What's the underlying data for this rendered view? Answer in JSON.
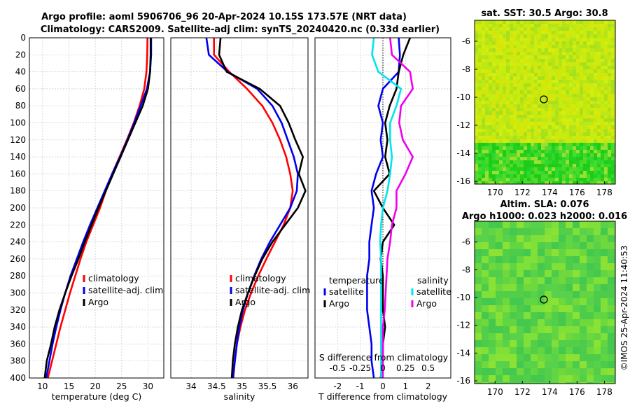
{
  "header": {
    "title_line1": "Argo profile: aoml 5906706_96 20-Apr-2024 10.15S 173.57E (NRT data)",
    "title_line2": "Climatology: CARS2009. Satellite-adj clim: synTS_20240420.nc (0.33d earlier)"
  },
  "stamp": "©IMOS 25-Apr-2024 11:40:53",
  "colors": {
    "climatology": "#ff0000",
    "satellite": "#0000ee",
    "argo": "#000000",
    "sal_satellite": "#00e5ee",
    "sal_argo": "#ee00ee",
    "sst_map": "#c8e600",
    "sla_map": "#60d040"
  },
  "chart_data": [
    {
      "type": "line",
      "id": "temperature",
      "xlabel": "temperature (deg C)",
      "xlim": [
        7.5,
        33
      ],
      "xticks": [
        10,
        15,
        20,
        25,
        30
      ],
      "ylim": [
        400,
        0
      ],
      "yticks": [
        0,
        20,
        40,
        60,
        80,
        100,
        120,
        140,
        160,
        180,
        200,
        220,
        240,
        260,
        280,
        300,
        320,
        340,
        360,
        380,
        400
      ],
      "legend": [
        "climatology",
        "satellite-adj. clim",
        "Argo"
      ],
      "series": [
        {
          "name": "climatology",
          "color": "#ff0000",
          "depth": [
            0,
            20,
            40,
            60,
            80,
            100,
            120,
            140,
            160,
            180,
            200,
            220,
            240,
            260,
            280,
            300,
            320,
            340,
            360,
            380,
            400
          ],
          "values": [
            29.9,
            29.85,
            29.7,
            29.3,
            28.4,
            27.3,
            26.0,
            24.6,
            23.2,
            22.0,
            20.9,
            19.6,
            18.3,
            17.2,
            16.2,
            15.2,
            14.3,
            13.4,
            12.6,
            11.8,
            11.0
          ]
        },
        {
          "name": "satellite-adj. clim",
          "color": "#0000ee",
          "depth": [
            0,
            20,
            40,
            60,
            80,
            100,
            120,
            140,
            160,
            180,
            200,
            220,
            240,
            260,
            280,
            300,
            320,
            340,
            360,
            380,
            400
          ],
          "values": [
            30.6,
            30.6,
            30.4,
            29.8,
            28.6,
            27.4,
            26.1,
            24.7,
            23.2,
            21.8,
            20.4,
            19.0,
            17.7,
            16.5,
            15.3,
            14.3,
            13.4,
            12.6,
            11.9,
            11.3,
            10.7
          ]
        },
        {
          "name": "Argo",
          "color": "#000000",
          "depth": [
            0,
            20,
            40,
            60,
            80,
            100,
            120,
            140,
            160,
            180,
            200,
            220,
            240,
            260,
            280,
            300,
            320,
            340,
            360,
            380,
            400
          ],
          "values": [
            30.5,
            30.5,
            30.4,
            30.0,
            29.0,
            27.6,
            26.2,
            24.8,
            23.4,
            22.0,
            20.6,
            19.3,
            18.0,
            16.8,
            15.5,
            14.3,
            13.2,
            12.3,
            11.6,
            10.8,
            10.4
          ]
        }
      ]
    },
    {
      "type": "line",
      "id": "salinity",
      "xlabel": "salinity",
      "xlim": [
        33.6,
        36.3
      ],
      "xticks": [
        34,
        34.5,
        35,
        35.5,
        36
      ],
      "ylim": [
        400,
        0
      ],
      "legend": [
        "climatology",
        "satellite-adj. clim",
        "Argo"
      ],
      "series": [
        {
          "name": "climatology",
          "color": "#ff0000",
          "depth": [
            0,
            20,
            40,
            60,
            80,
            100,
            120,
            140,
            160,
            180,
            200,
            220,
            240,
            260,
            280,
            300,
            320,
            340,
            360,
            380,
            400
          ],
          "values": [
            34.45,
            34.45,
            34.75,
            35.1,
            35.4,
            35.6,
            35.75,
            35.87,
            35.95,
            36.0,
            35.95,
            35.82,
            35.65,
            35.48,
            35.32,
            35.18,
            35.06,
            34.97,
            34.9,
            34.86,
            34.83
          ]
        },
        {
          "name": "satellite-adj. clim",
          "color": "#0000ee",
          "depth": [
            0,
            20,
            40,
            60,
            80,
            100,
            120,
            140,
            160,
            180,
            200,
            220,
            240,
            260,
            280,
            300,
            320,
            340,
            360,
            380,
            400
          ],
          "values": [
            34.3,
            34.35,
            34.72,
            35.3,
            35.6,
            35.78,
            35.9,
            36.02,
            36.1,
            36.08,
            35.95,
            35.75,
            35.55,
            35.38,
            35.24,
            35.12,
            35.02,
            34.95,
            34.9,
            34.86,
            34.82
          ]
        },
        {
          "name": "Argo",
          "color": "#000000",
          "depth": [
            0,
            20,
            40,
            60,
            80,
            100,
            120,
            140,
            160,
            180,
            200,
            220,
            240,
            260,
            280,
            300,
            320,
            340,
            360,
            380,
            400
          ],
          "values": [
            34.58,
            34.55,
            34.7,
            35.35,
            35.75,
            35.92,
            36.05,
            36.2,
            36.12,
            36.25,
            36.1,
            35.85,
            35.6,
            35.4,
            35.25,
            35.12,
            35.0,
            34.92,
            34.86,
            34.82,
            34.8
          ]
        }
      ]
    },
    {
      "type": "line",
      "id": "differences",
      "xlabel": "T difference from climatology",
      "xlabel_top": "S difference from climatology",
      "xlim": [
        -3,
        3
      ],
      "xticks": [
        -2,
        -1,
        0,
        1,
        2
      ],
      "sticks": [
        "-0.5",
        "-0.25",
        "0",
        "0.25",
        "0.5"
      ],
      "ylim": [
        400,
        0
      ],
      "legend_temperature": {
        "heading": "temperature",
        "items": [
          "satellite",
          "Argo"
        ]
      },
      "legend_salinity": {
        "heading": "salinity",
        "items": [
          "satellite",
          "Argo"
        ]
      },
      "series": [
        {
          "name": "temperature satellite",
          "color": "#0000ee",
          "depth": [
            0,
            20,
            40,
            60,
            80,
            100,
            120,
            140,
            160,
            180,
            200,
            220,
            240,
            260,
            280,
            300,
            320,
            340,
            360,
            380,
            400
          ],
          "values": [
            0.7,
            0.75,
            0.7,
            0.0,
            -0.2,
            0.0,
            -0.1,
            0.0,
            -0.3,
            -0.5,
            -0.4,
            -0.5,
            -0.6,
            -0.6,
            -0.7,
            -0.7,
            -0.7,
            -0.6,
            -0.5,
            -0.5,
            -0.4
          ]
        },
        {
          "name": "temperature Argo",
          "color": "#000000",
          "depth": [
            0,
            20,
            40,
            60,
            80,
            100,
            120,
            140,
            160,
            180,
            200,
            220,
            240,
            260,
            280,
            300,
            320,
            340,
            360,
            380,
            400
          ],
          "values": [
            1.2,
            0.9,
            0.7,
            0.6,
            0.3,
            0.1,
            0.2,
            0.1,
            0.3,
            -0.4,
            0.0,
            0.5,
            0.0,
            -0.1,
            0.0,
            0.0,
            0.0,
            0.1,
            0.0,
            0.0,
            -0.1
          ]
        },
        {
          "name": "salinity satellite",
          "color": "#00e5ee",
          "depth": [
            0,
            20,
            40,
            60,
            80,
            100,
            120,
            140,
            160,
            180,
            200,
            220,
            240,
            260,
            280,
            300,
            320,
            340,
            360,
            380,
            400
          ],
          "values": [
            -0.1,
            -0.12,
            -0.05,
            0.2,
            0.15,
            0.08,
            0.08,
            0.1,
            0.08,
            0.05,
            0.0,
            -0.02,
            -0.03,
            -0.02,
            -0.02,
            -0.02,
            -0.02,
            -0.02,
            -0.02,
            -0.02,
            -0.02
          ]
        },
        {
          "name": "salinity Argo",
          "color": "#ee00ee",
          "depth": [
            0,
            20,
            40,
            60,
            80,
            100,
            120,
            140,
            160,
            180,
            200,
            220,
            240,
            260,
            280,
            300,
            320,
            340,
            360,
            380,
            400
          ],
          "values": [
            0.08,
            0.1,
            0.3,
            0.33,
            0.2,
            0.18,
            0.22,
            0.33,
            0.25,
            0.15,
            0.15,
            0.1,
            0.08,
            0.05,
            0.04,
            0.03,
            0.02,
            0.0,
            0.0,
            0.0,
            0.0
          ]
        }
      ]
    },
    {
      "type": "heatmap",
      "id": "sst_map",
      "title": "sat. SST: 30.5 Argo: 30.8",
      "xlim": [
        168.5,
        178.8
      ],
      "xticks": [
        "170",
        "172",
        "174",
        "176",
        "178"
      ],
      "ylim": [
        -16.2,
        -4.5
      ],
      "yticks": [
        "-6",
        "-8",
        "-10",
        "-12",
        "-14",
        "-16"
      ],
      "marker": {
        "lon": 173.57,
        "lat": -10.15
      }
    },
    {
      "type": "heatmap",
      "id": "sla_map",
      "title_line1": "Altim. SLA: 0.076",
      "title_line2": "Argo h1000: 0.023 h2000: 0.016",
      "xlim": [
        168.5,
        178.8
      ],
      "xticks": [
        "170",
        "172",
        "174",
        "176",
        "178"
      ],
      "ylim": [
        -16.2,
        -4.5
      ],
      "yticks": [
        "-6",
        "-8",
        "-10",
        "-12",
        "-14",
        "-16"
      ],
      "marker": {
        "lon": 173.57,
        "lat": -10.15
      }
    }
  ]
}
